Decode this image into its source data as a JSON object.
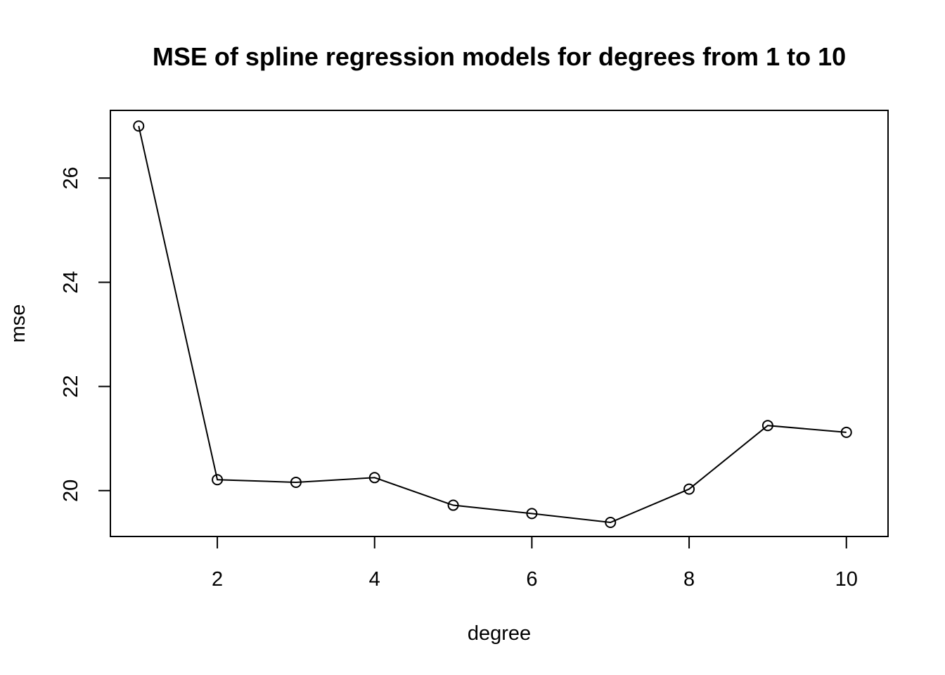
{
  "chart_data": {
    "type": "line",
    "title": "MSE of spline regression models for degrees from 1 to 10",
    "xlabel": "degree",
    "ylabel": "mse",
    "x": [
      1,
      2,
      3,
      4,
      5,
      6,
      7,
      8,
      9,
      10
    ],
    "y": [
      27.0,
      20.21,
      20.16,
      20.25,
      19.72,
      19.56,
      19.39,
      20.03,
      21.25,
      21.12
    ],
    "x_ticks": [
      "2",
      "4",
      "6",
      "8",
      "10"
    ],
    "y_ticks": [
      "20",
      "22",
      "24",
      "26"
    ],
    "xlim": [
      0.64,
      10.53
    ],
    "ylim": [
      19.12,
      27.3
    ],
    "marker": "open-circle",
    "line_color": "#000000",
    "grid": false,
    "legend": "none"
  }
}
